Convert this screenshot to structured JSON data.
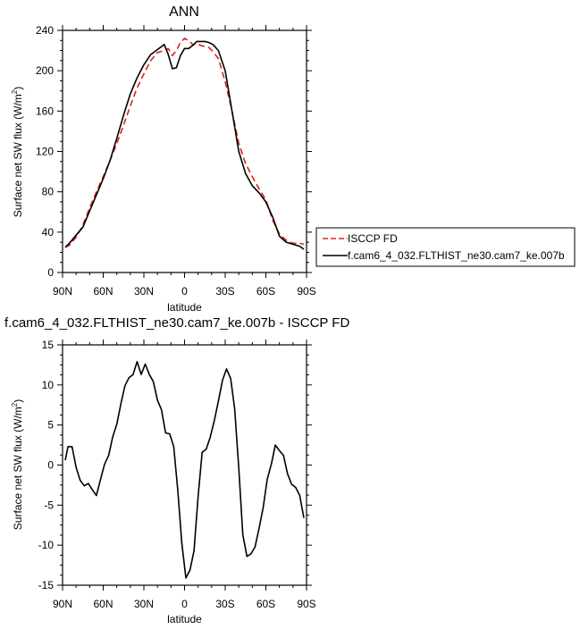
{
  "chart_data": [
    {
      "type": "line",
      "title": "ANN",
      "xlabel": "latitude",
      "ylabel_main": "Surface net SW flux (W/m",
      "ylabel_sup": "2",
      "ylabel_close": ")",
      "xlim": [
        -90,
        90
      ],
      "ylim": [
        0,
        240
      ],
      "x_tick_values": [
        -90,
        -60,
        -30,
        0,
        30,
        60,
        90
      ],
      "x_tick_labels": [
        "90N",
        "60N",
        "30N",
        "0",
        "30S",
        "60S",
        "90S"
      ],
      "y_tick_values": [
        0,
        40,
        80,
        120,
        160,
        200,
        240
      ],
      "y_tick_labels": [
        "0",
        "40",
        "80",
        "120",
        "160",
        "200",
        "240"
      ],
      "legend_position": "right",
      "series": [
        {
          "name": "ISCCP FD",
          "color": "#e0201b",
          "dashed": true,
          "x": [
            -88,
            -85,
            -80,
            -75,
            -70,
            -65,
            -60,
            -55,
            -50,
            -45,
            -40,
            -35,
            -30,
            -25,
            -20,
            -15,
            -12,
            -9,
            -6,
            -3,
            0,
            3,
            6,
            9,
            12,
            15,
            18,
            21,
            25,
            30,
            35,
            40,
            45,
            50,
            55,
            60,
            65,
            70,
            75,
            80,
            85,
            88
          ],
          "y": [
            25,
            27,
            35,
            47,
            64,
            80,
            95,
            111,
            128,
            146,
            165,
            183,
            197,
            210,
            218,
            220,
            222,
            215,
            220,
            228,
            232,
            230,
            226,
            227,
            225,
            224,
            223,
            219,
            212,
            189,
            160,
            128,
            108,
            95,
            83,
            72,
            52,
            38,
            32,
            29,
            29,
            28
          ]
        },
        {
          "name": "f.cam6_4_032.FLTHIST_ne30.cam7_ke.007b",
          "color": "#000000",
          "dashed": false,
          "x": [
            -88,
            -85,
            -80,
            -75,
            -70,
            -65,
            -60,
            -55,
            -50,
            -45,
            -40,
            -35,
            -30,
            -25,
            -20,
            -15,
            -12,
            -9,
            -6,
            -3,
            0,
            3,
            6,
            9,
            12,
            15,
            18,
            21,
            25,
            30,
            35,
            40,
            45,
            50,
            55,
            60,
            65,
            70,
            75,
            80,
            85,
            88
          ],
          "y": [
            25,
            29,
            37,
            45,
            61,
            77,
            93,
            111,
            133,
            156,
            177,
            193,
            206,
            216,
            221,
            226,
            216,
            202,
            203,
            215,
            222,
            222,
            225,
            229,
            229,
            229,
            228,
            226,
            220,
            200,
            160,
            120,
            98,
            86,
            79,
            70,
            55,
            36,
            30,
            28,
            26,
            23
          ]
        }
      ]
    },
    {
      "type": "line",
      "title": "f.cam6_4_032.FLTHIST_ne30.cam7_ke.007b - ISCCP FD",
      "xlabel": "latitude",
      "ylabel_main": "Surface net SW flux (W/m",
      "ylabel_sup": "2",
      "ylabel_close": ")",
      "xlim": [
        -90,
        90
      ],
      "ylim": [
        -15,
        15
      ],
      "x_tick_values": [
        -90,
        -60,
        -30,
        0,
        30,
        60,
        90
      ],
      "x_tick_labels": [
        "90N",
        "60N",
        "30N",
        "0",
        "30S",
        "60S",
        "90S"
      ],
      "y_tick_values": [
        -15,
        -10,
        -5,
        0,
        5,
        10,
        15
      ],
      "y_tick_labels": [
        "-15",
        "-10",
        "-5",
        "0",
        "5",
        "10",
        "15"
      ],
      "series": [
        {
          "name": "",
          "color": "#000000",
          "dashed": false,
          "x": [
            -88,
            -86,
            -83,
            -80,
            -77,
            -74,
            -71,
            -68,
            -65,
            -62,
            -59,
            -56,
            -53,
            -50,
            -47,
            -44,
            -41,
            -38,
            -35,
            -32,
            -29,
            -26,
            -23,
            -20,
            -17,
            -14,
            -11,
            -8,
            -5,
            -2,
            1,
            4,
            7,
            10,
            13,
            16,
            19,
            22,
            25,
            28,
            31,
            34,
            37,
            40,
            43,
            46,
            49,
            52,
            55,
            58,
            61,
            64,
            67,
            70,
            73,
            76,
            79,
            82,
            85,
            88
          ],
          "y": [
            0.6,
            2.3,
            2.3,
            -0.3,
            -1.9,
            -2.6,
            -2.3,
            -3.1,
            -3.8,
            -1.8,
            0.1,
            1.2,
            3.5,
            5.1,
            7.6,
            9.9,
            10.9,
            11.3,
            12.9,
            11.3,
            12.6,
            11.3,
            10.4,
            8.1,
            6.9,
            4.0,
            3.9,
            2.3,
            -3.1,
            -9.8,
            -14.1,
            -13.1,
            -10.7,
            -3.9,
            1.6,
            2.0,
            3.5,
            5.6,
            8.0,
            10.6,
            12.0,
            10.8,
            7.0,
            -0.4,
            -8.7,
            -11.4,
            -11.1,
            -10.2,
            -7.9,
            -5.3,
            -1.8,
            0.1,
            2.5,
            1.8,
            1.2,
            -1.1,
            -2.4,
            -2.8,
            -3.8,
            -6.6
          ]
        }
      ]
    }
  ]
}
